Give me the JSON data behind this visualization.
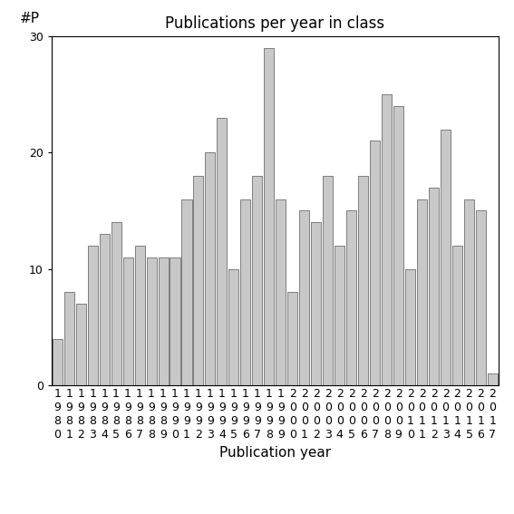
{
  "title": "Publications per year in class",
  "xlabel": "Publication year",
  "ylabel": "#P",
  "bar_color": "#c8c8c8",
  "edge_color": "#555555",
  "years": [
    1980,
    1981,
    1982,
    1983,
    1984,
    1985,
    1986,
    1987,
    1988,
    1989,
    1990,
    1991,
    1992,
    1993,
    1994,
    1995,
    1996,
    1997,
    1998,
    1999,
    2000,
    2001,
    2002,
    2003,
    2004,
    2005,
    2006,
    2007,
    2008,
    2009,
    2010,
    2011,
    2012,
    2013,
    2014,
    2015,
    2016,
    2017
  ],
  "values": [
    4,
    8,
    7,
    12,
    13,
    14,
    11,
    12,
    11,
    11,
    11,
    16,
    18,
    20,
    23,
    10,
    16,
    18,
    29,
    16,
    8,
    15,
    14,
    18,
    12,
    15,
    18,
    21,
    25,
    24,
    10,
    16,
    17,
    22,
    12,
    16,
    15,
    1
  ],
  "ylim": [
    0,
    30
  ],
  "yticks": [
    0,
    10,
    20,
    30
  ],
  "title_fontsize": 12,
  "label_fontsize": 11,
  "tick_fontsize": 9
}
